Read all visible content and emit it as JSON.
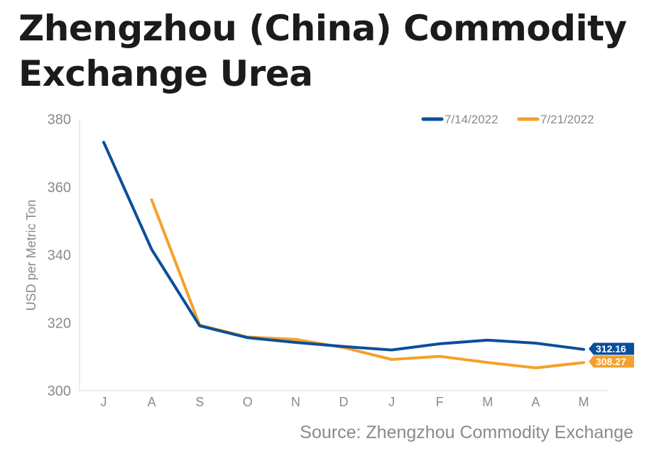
{
  "title_lines": [
    "Zhengzhou (China) Commodity",
    "Exchange Urea"
  ],
  "source": "Source: Zhengzhou Commodity Exchange",
  "chart_data": {
    "type": "line",
    "title": "Zhengzhou (China) Commodity Exchange Urea",
    "xlabel": "",
    "ylabel": "USD per Metric Ton",
    "categories": [
      "J",
      "A",
      "S",
      "O",
      "N",
      "D",
      "J",
      "F",
      "M",
      "A",
      "M"
    ],
    "ylim": [
      300,
      380
    ],
    "yticks": [
      300,
      320,
      340,
      360,
      380
    ],
    "grid": false,
    "legend": "top-right",
    "series": [
      {
        "name": "7/14/2022",
        "color": "#0a4f9c",
        "values": [
          373.2,
          341.6,
          319.1,
          315.6,
          314.2,
          313.0,
          312.0,
          313.8,
          314.9,
          314.0,
          312.16
        ],
        "end_label": "312.16"
      },
      {
        "name": "7/21/2022",
        "color": "#f5a02a",
        "values": [
          null,
          356.2,
          319.3,
          315.8,
          315.1,
          312.7,
          309.2,
          310.1,
          308.3,
          306.7,
          308.27
        ],
        "end_label": "308.27"
      }
    ]
  }
}
